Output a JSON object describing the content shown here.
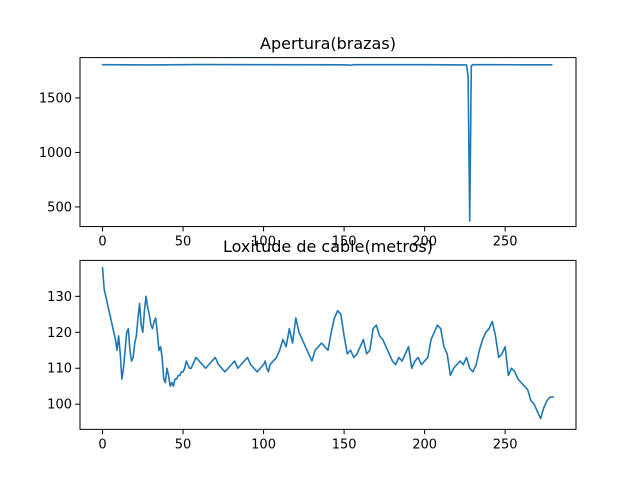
{
  "chart_data": [
    {
      "type": "line",
      "title": "Apertura(brazas)",
      "xlabel": "",
      "ylabel": "",
      "xlim": [
        -14,
        294
      ],
      "ylim": [
        320,
        1870
      ],
      "xticks": [
        0,
        50,
        100,
        150,
        200,
        250
      ],
      "yticks": [
        500,
        1000,
        1500
      ],
      "grid": false,
      "color": "#1f77b4",
      "series": [
        {
          "x": [
            0,
            30,
            60,
            100,
            150,
            154,
            156,
            200,
            226,
            227,
            228,
            229,
            230,
            240,
            260,
            279
          ],
          "y": [
            1805,
            1803,
            1806,
            1805,
            1804,
            1800,
            1805,
            1805,
            1803,
            1700,
            370,
            1795,
            1805,
            1805,
            1804,
            1804
          ]
        }
      ]
    },
    {
      "type": "line",
      "title": "Loxitude de cable(metros)",
      "xlabel": "",
      "ylabel": "",
      "xlim": [
        -14,
        294
      ],
      "ylim": [
        93,
        140
      ],
      "xticks": [
        0,
        50,
        100,
        150,
        200,
        250
      ],
      "yticks": [
        100,
        110,
        120,
        130
      ],
      "grid": false,
      "color": "#1f77b4",
      "series": [
        {
          "x": [
            0,
            1,
            3,
            5,
            7,
            8,
            9,
            10,
            11,
            12,
            13,
            14,
            15,
            16,
            17,
            18,
            19,
            20,
            21,
            22,
            23,
            24,
            25,
            26,
            27,
            28,
            29,
            30,
            31,
            32,
            33,
            34,
            35,
            36,
            37,
            38,
            39,
            40,
            41,
            42,
            43,
            44,
            45,
            46,
            47,
            48,
            49,
            50,
            51,
            52,
            53,
            54,
            55,
            56,
            57,
            58,
            60,
            62,
            64,
            66,
            68,
            70,
            72,
            74,
            76,
            78,
            80,
            82,
            84,
            86,
            88,
            90,
            92,
            94,
            96,
            98,
            100,
            101,
            102,
            103,
            104,
            106,
            108,
            110,
            112,
            114,
            116,
            118,
            120,
            122,
            124,
            126,
            128,
            130,
            132,
            134,
            136,
            138,
            140,
            142,
            144,
            146,
            148,
            150,
            152,
            154,
            156,
            158,
            160,
            162,
            164,
            166,
            168,
            170,
            172,
            174,
            176,
            178,
            180,
            182,
            184,
            186,
            188,
            190,
            192,
            194,
            196,
            198,
            200,
            202,
            204,
            206,
            208,
            210,
            212,
            214,
            216,
            218,
            220,
            222,
            224,
            226,
            228,
            230,
            232,
            234,
            236,
            238,
            240,
            242,
            244,
            246,
            248,
            250,
            252,
            254,
            256,
            258,
            260,
            262,
            264,
            266,
            268,
            270,
            272,
            274,
            276,
            278,
            280
          ],
          "y": [
            138,
            132,
            128,
            124,
            120,
            118,
            115,
            119,
            114,
            107,
            110,
            115,
            120,
            121,
            115,
            112,
            113,
            117,
            119,
            124,
            128,
            122,
            120,
            126,
            130,
            127,
            125,
            122,
            121,
            123,
            124,
            120,
            115,
            116,
            113,
            107,
            106,
            110,
            108,
            105,
            106,
            105,
            107,
            107,
            108,
            108,
            109,
            109,
            110,
            112,
            111,
            110,
            110,
            111,
            112,
            113,
            112,
            111,
            110,
            111,
            112,
            113,
            111,
            110,
            109,
            110,
            111,
            112,
            110,
            111,
            112,
            113,
            111,
            110,
            109,
            110,
            111,
            112,
            110,
            109,
            111,
            112,
            113,
            115,
            118,
            116,
            121,
            117,
            124,
            120,
            118,
            116,
            114,
            112,
            115,
            116,
            117,
            116,
            115,
            120,
            124,
            126,
            125,
            119,
            114,
            115,
            113,
            114,
            116,
            118,
            114,
            115,
            121,
            122,
            119,
            118,
            116,
            114,
            112,
            111,
            113,
            112,
            114,
            116,
            110,
            112,
            113,
            111,
            112,
            113,
            118,
            120,
            122,
            121,
            116,
            114,
            108,
            110,
            111,
            112,
            111,
            113,
            110,
            109,
            111,
            115,
            118,
            120,
            121,
            123,
            119,
            113,
            114,
            116,
            108,
            110,
            109,
            107,
            106,
            105,
            104,
            101,
            100,
            98,
            96,
            99,
            101,
            102,
            102
          ]
        }
      ]
    }
  ]
}
